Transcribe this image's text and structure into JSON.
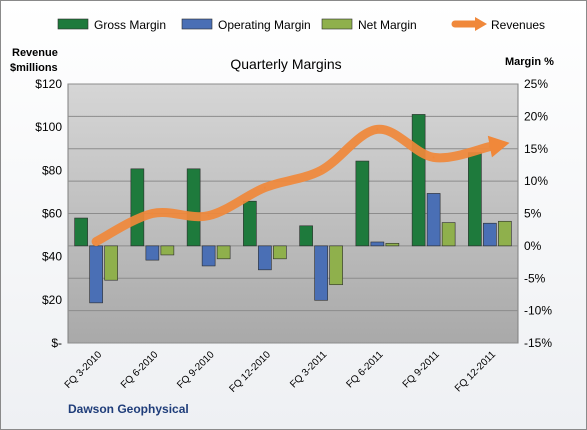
{
  "chart_data": {
    "type": "bar",
    "title": "Quarterly Margins",
    "company": "Dawson Geophysical",
    "left_axis_title_line1": "Revenue",
    "left_axis_title_line2": "$millions",
    "right_axis_title": "Margin %",
    "categories": [
      "FQ 3-2010",
      "FQ 6-2010",
      "FQ 9-2010",
      "FQ 12-2010",
      "FQ 3-2011",
      "FQ 6-2011",
      "FQ 9-2011",
      "FQ 12-2011"
    ],
    "left_ticks": [
      "$-",
      "$20",
      "$40",
      "$60",
      "$80",
      "$100",
      "$120"
    ],
    "right_ticks": [
      "-15%",
      "-10%",
      "-5%",
      "0%",
      "5%",
      "10%",
      "15%",
      "20%",
      "25%"
    ],
    "ylim_left": [
      0,
      120
    ],
    "ylim_right": [
      -15,
      25
    ],
    "series": [
      {
        "name": "Gross Margin",
        "axis": "right",
        "type": "bar",
        "color": "#1e7a3c",
        "values": [
          4.3,
          11.9,
          11.9,
          6.9,
          3.1,
          13.1,
          20.3,
          14.4
        ]
      },
      {
        "name": "Operating Margin",
        "axis": "right",
        "type": "bar",
        "color": "#4a6fb5",
        "values": [
          -8.8,
          -2.2,
          -3.1,
          -3.7,
          -8.4,
          0.6,
          8.1,
          3.5
        ]
      },
      {
        "name": "Net Margin",
        "axis": "right",
        "type": "bar",
        "color": "#8fb04c",
        "values": [
          -5.3,
          -1.4,
          -2.0,
          -2.0,
          -6.0,
          0.4,
          3.6,
          3.8
        ]
      },
      {
        "name": "Revenues",
        "axis": "left",
        "type": "line",
        "color": "#f0883a",
        "values": [
          47,
          60,
          59,
          72,
          80,
          99,
          86,
          91
        ]
      }
    ],
    "grid": true,
    "legend_position": "top"
  }
}
